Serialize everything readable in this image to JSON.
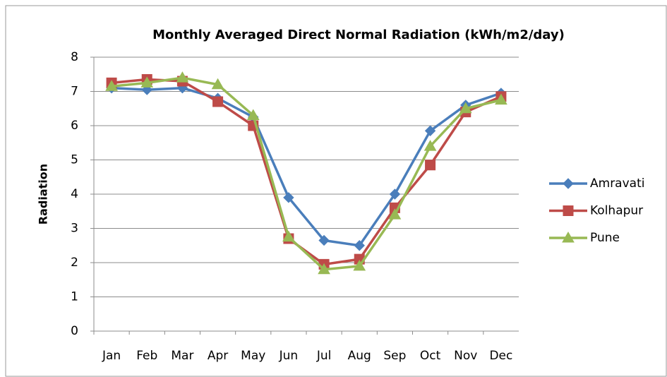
{
  "chart_data": {
    "type": "line",
    "title": "Monthly Averaged Direct Normal Radiation (kWh/m2/day)",
    "y_label": "Radiation",
    "categories": [
      "Jan",
      "Feb",
      "Mar",
      "Apr",
      "May",
      "Jun",
      "Jul",
      "Aug",
      "Sep",
      "Oct",
      "Nov",
      "Dec"
    ],
    "series": [
      {
        "name": "Amravati",
        "color": "#4a7ebb",
        "marker": "diamond",
        "values": [
          7.1,
          7.05,
          7.1,
          6.8,
          6.25,
          3.9,
          2.65,
          2.5,
          4.0,
          5.85,
          6.6,
          6.95
        ]
      },
      {
        "name": "Kolhapur",
        "color": "#be4b48",
        "marker": "square",
        "values": [
          7.25,
          7.35,
          7.3,
          6.7,
          6.0,
          2.7,
          1.95,
          2.1,
          3.6,
          4.85,
          6.4,
          6.85
        ]
      },
      {
        "name": "Pune",
        "color": "#98b954",
        "marker": "triangle",
        "values": [
          7.15,
          7.25,
          7.4,
          7.2,
          6.3,
          2.75,
          1.8,
          1.9,
          3.4,
          5.4,
          6.5,
          6.75
        ]
      }
    ],
    "ylim": [
      0,
      8
    ],
    "yticks": [
      0,
      1,
      2,
      3,
      4,
      5,
      6,
      7,
      8
    ],
    "grid": true,
    "legend": "right"
  }
}
